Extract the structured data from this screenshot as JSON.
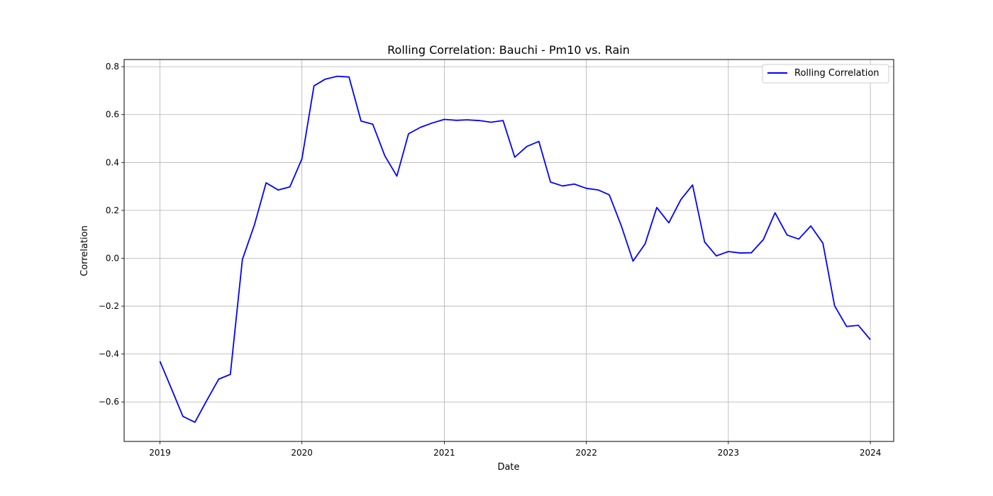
{
  "chart_data": {
    "type": "line",
    "title": "Rolling Correlation: Bauchi - Pm10 vs. Rain",
    "xlabel": "Date",
    "ylabel": "Correlation",
    "xlim": [
      "2018-10-01",
      "2024-03-01"
    ],
    "ylim": [
      -0.765,
      0.83
    ],
    "x_ticks": [
      "2019",
      "2020",
      "2021",
      "2022",
      "2023",
      "2024"
    ],
    "y_ticks": [
      -0.6,
      -0.4,
      -0.2,
      0.0,
      0.2,
      0.4,
      0.6,
      0.8
    ],
    "y_tick_labels": [
      "−0.6",
      "−0.4",
      "−0.2",
      "0.0",
      "0.2",
      "0.4",
      "0.6",
      "0.8"
    ],
    "grid": true,
    "legend_position": "top-right",
    "series": [
      {
        "name": "Rolling Correlation",
        "color": "#0000ff",
        "x": [
          "2019-01",
          "2019-02",
          "2019-03",
          "2019-04",
          "2019-05",
          "2019-06",
          "2019-07",
          "2019-08",
          "2019-09",
          "2019-10",
          "2019-11",
          "2019-12",
          "2020-01",
          "2020-02",
          "2020-03",
          "2020-04",
          "2020-05",
          "2020-06",
          "2020-07",
          "2020-08",
          "2020-09",
          "2020-10",
          "2020-11",
          "2020-12",
          "2021-01",
          "2021-02",
          "2021-03",
          "2021-04",
          "2021-05",
          "2021-06",
          "2021-07",
          "2021-08",
          "2021-09",
          "2021-10",
          "2021-11",
          "2021-12",
          "2022-01",
          "2022-02",
          "2022-03",
          "2022-04",
          "2022-05",
          "2022-06",
          "2022-07",
          "2022-08",
          "2022-09",
          "2022-10",
          "2022-11",
          "2022-12",
          "2023-01",
          "2023-02",
          "2023-03",
          "2023-04",
          "2023-05",
          "2023-06",
          "2023-07",
          "2023-08",
          "2023-09",
          "2023-10",
          "2023-11",
          "2023-12",
          "2024-01"
        ],
        "y": [
          -0.43,
          -0.55,
          -0.66,
          -0.685,
          -0.595,
          -0.505,
          -0.485,
          -0.005,
          0.14,
          0.315,
          0.285,
          0.298,
          0.415,
          0.72,
          0.748,
          0.76,
          0.757,
          0.573,
          0.56,
          0.428,
          0.343,
          0.52,
          0.547,
          0.565,
          0.58,
          0.576,
          0.578,
          0.575,
          0.568,
          0.575,
          0.422,
          0.467,
          0.488,
          0.318,
          0.302,
          0.31,
          0.292,
          0.285,
          0.265,
          0.135,
          -0.012,
          0.06,
          0.212,
          0.148,
          0.245,
          0.306,
          0.068,
          0.01,
          0.028,
          0.022,
          0.023,
          0.078,
          0.19,
          0.097,
          0.08,
          0.135,
          0.063,
          -0.198,
          -0.285,
          -0.28,
          -0.34
        ]
      }
    ]
  }
}
